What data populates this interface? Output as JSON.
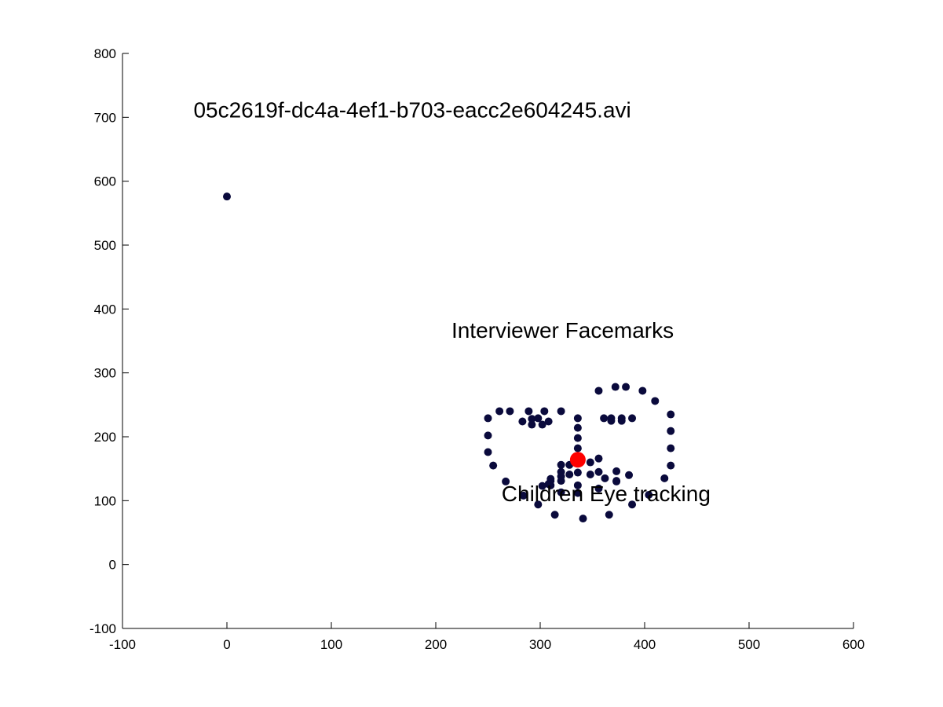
{
  "chart_data": {
    "type": "scatter",
    "xlim": [
      -100,
      600
    ],
    "ylim": [
      -100,
      800
    ],
    "x_ticks": [
      "-100",
      "0",
      "100",
      "200",
      "300",
      "400",
      "500",
      "600"
    ],
    "y_ticks": [
      "-100",
      "0",
      "100",
      "200",
      "300",
      "400",
      "500",
      "600",
      "700",
      "800"
    ],
    "grid": false,
    "legend": "none",
    "annotations": [
      {
        "text": "05c2619f-dc4a-4ef1-b703-eacc2e604245.avi",
        "x": -32,
        "y": 700
      },
      {
        "text": "Interviewer Facemarks",
        "x": 215,
        "y": 355
      },
      {
        "text": "Children Eye tracking",
        "x": 263,
        "y": 99
      }
    ],
    "series": [
      {
        "color": "#0a0a3c",
        "points": [
          [
            0,
            576
          ],
          [
            250,
            229
          ],
          [
            250,
            202
          ],
          [
            250,
            176
          ],
          [
            255,
            155
          ],
          [
            267,
            130
          ],
          [
            284,
            108
          ],
          [
            298,
            94
          ],
          [
            314,
            78
          ],
          [
            341,
            72
          ],
          [
            366,
            78
          ],
          [
            388,
            94
          ],
          [
            404,
            109
          ],
          [
            419,
            135
          ],
          [
            425,
            155
          ],
          [
            425,
            182
          ],
          [
            425,
            209
          ],
          [
            425,
            235
          ],
          [
            261,
            240
          ],
          [
            271,
            240
          ],
          [
            289,
            240
          ],
          [
            304,
            240
          ],
          [
            320,
            240
          ],
          [
            356,
            272
          ],
          [
            372,
            278
          ],
          [
            382,
            278
          ],
          [
            398,
            272
          ],
          [
            410,
            256
          ],
          [
            336,
            229
          ],
          [
            336,
            214
          ],
          [
            336,
            198
          ],
          [
            336,
            182
          ],
          [
            320,
            156
          ],
          [
            328,
            156
          ],
          [
            336,
            160
          ],
          [
            348,
            160
          ],
          [
            356,
            166
          ],
          [
            283,
            224
          ],
          [
            292,
            228
          ],
          [
            298,
            229
          ],
          [
            308,
            224
          ],
          [
            302,
            219
          ],
          [
            292,
            219
          ],
          [
            361,
            229
          ],
          [
            368,
            229
          ],
          [
            378,
            229
          ],
          [
            388,
            229
          ],
          [
            378,
            225
          ],
          [
            368,
            225
          ],
          [
            302,
            123
          ],
          [
            310,
            131
          ],
          [
            320,
            138
          ],
          [
            328,
            141
          ],
          [
            336,
            144
          ],
          [
            348,
            141
          ],
          [
            356,
            145
          ],
          [
            362,
            135
          ],
          [
            373,
            130
          ],
          [
            385,
            140
          ],
          [
            373,
            146
          ],
          [
            310,
            124
          ],
          [
            320,
            131
          ],
          [
            336,
            124
          ],
          [
            356,
            119
          ],
          [
            373,
            131
          ],
          [
            310,
            134
          ],
          [
            320,
            145
          ],
          [
            320,
            113
          ],
          [
            336,
            112
          ],
          [
            308,
            126
          ]
        ]
      },
      {
        "color": "#ff0000",
        "points": [
          [
            336,
            164
          ]
        ]
      }
    ]
  }
}
